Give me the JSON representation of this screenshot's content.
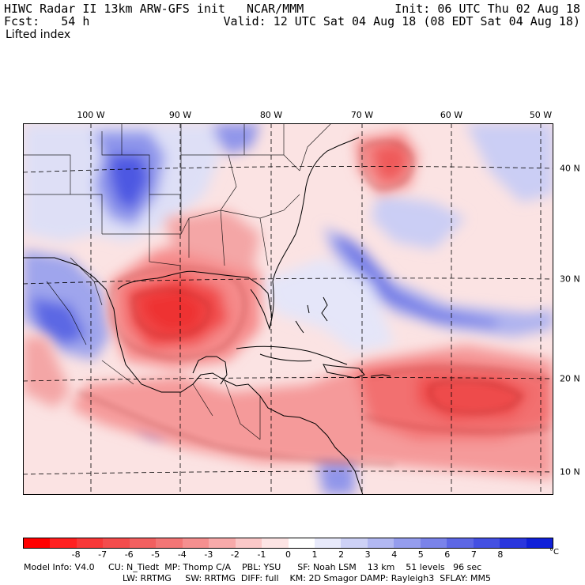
{
  "header": {
    "model_line": "HIWC Radar II 13km ARW-GFS init   NCAR/MMM",
    "init_line": "Init: 06 UTC Thu 02 Aug 18",
    "fcst_line": "Fcst:   54 h",
    "valid_line": "Valid: 12 UTC Sat 04 Aug 18 (08 EDT Sat 04 Aug 18)",
    "field_name": "Lifted index"
  },
  "map": {
    "lon_labels": [
      "100 W",
      "90 W",
      "80 W",
      "70 W",
      "60 W",
      "50 W"
    ],
    "lat_labels": [
      "40 N",
      "30 N",
      "20 N",
      "10 N"
    ],
    "colors": {
      "strong_unstable": "#f03a3a",
      "unstable": "#f68a8a",
      "weak_unstable": "#fbd0d0",
      "neutral": "#ffffff",
      "weak_stable": "#d4d8f6",
      "stable": "#8c93ec",
      "strong_stable": "#3a46e0",
      "contour": "#7a2020",
      "coastline": "#000000",
      "gridline": "#000000"
    }
  },
  "colorbar": {
    "labels": [
      "-8",
      "-7",
      "-6",
      "-5",
      "-4",
      "-3",
      "-2",
      "-1",
      "0",
      "1",
      "2",
      "3",
      "4",
      "5",
      "6",
      "7",
      "8"
    ],
    "unit": "°C",
    "colors": [
      "#ff0000",
      "#ff2020",
      "#f83838",
      "#f44c4c",
      "#f26060",
      "#f37676",
      "#f58f8f",
      "#f8aaaa",
      "#fbc8c8",
      "#fde4e4",
      "#ffffff",
      "#e8eafb",
      "#cdd1f6",
      "#b2b8f2",
      "#959dee",
      "#7a83ea",
      "#5d67e5",
      "#4450e2",
      "#2a36dd",
      "#1020d8"
    ]
  },
  "footer": {
    "line1": "Model Info: V4.0     CU: N_Tiedt  MP: Thomp C/A    PBL: YSU      SF: Noah LSM    13 km    51 levels   96 sec",
    "line2": "LW: RRTMG     SW: RRTMG  DIFF: full    KM: 2D Smagor DAMP: Rayleigh3  SFLAY: MM5"
  }
}
